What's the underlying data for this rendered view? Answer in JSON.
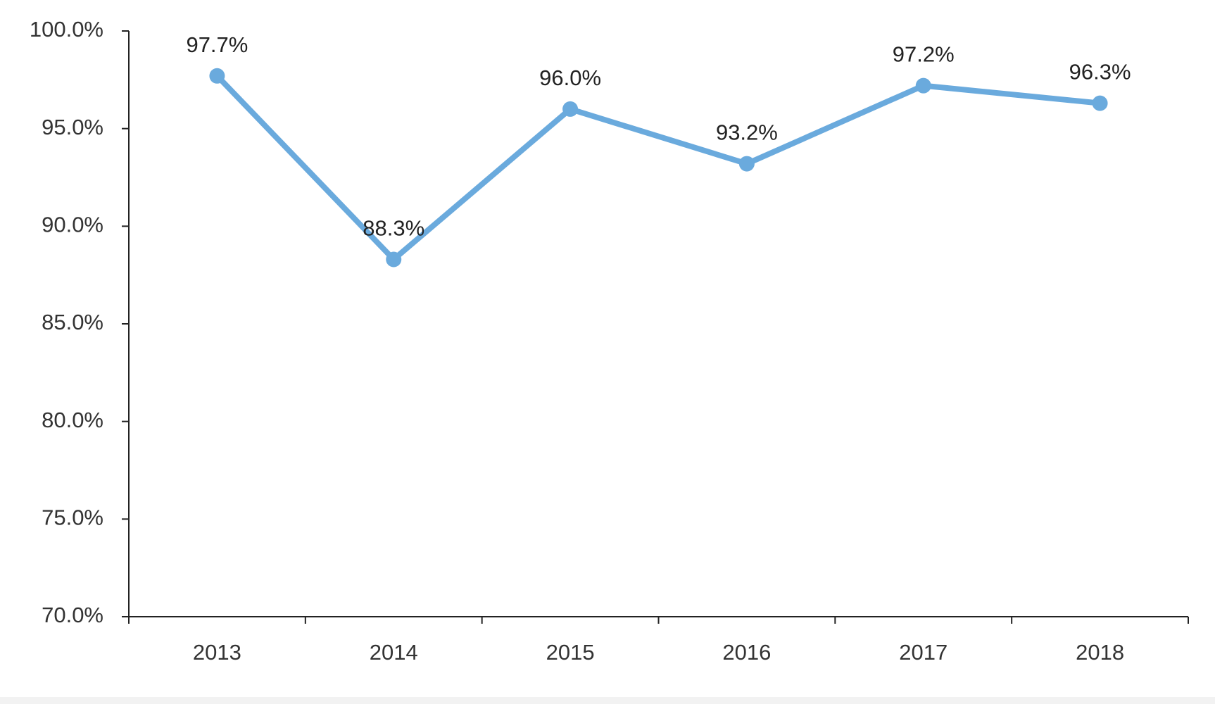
{
  "chart_data": {
    "type": "line",
    "title": "",
    "xlabel": "",
    "ylabel": "",
    "categories": [
      "2013",
      "2014",
      "2015",
      "2016",
      "2017",
      "2018"
    ],
    "series": [
      {
        "name": "",
        "values": [
          97.7,
          88.3,
          96.0,
          93.2,
          97.2,
          96.3
        ],
        "labels": [
          "97.7%",
          "88.3%",
          "96.0%",
          "93.2%",
          "97.2%",
          "96.3%"
        ],
        "color": "#6aaadd"
      }
    ],
    "ylim": [
      70,
      100
    ],
    "yticks": [
      70,
      75,
      80,
      85,
      90,
      95,
      100
    ],
    "ytick_labels": [
      "70.0%",
      "75.0%",
      "80.0%",
      "85.0%",
      "90.0%",
      "95.0%",
      "100.0%"
    ],
    "grid": false,
    "legend": "none",
    "axis_color": "#222222"
  }
}
